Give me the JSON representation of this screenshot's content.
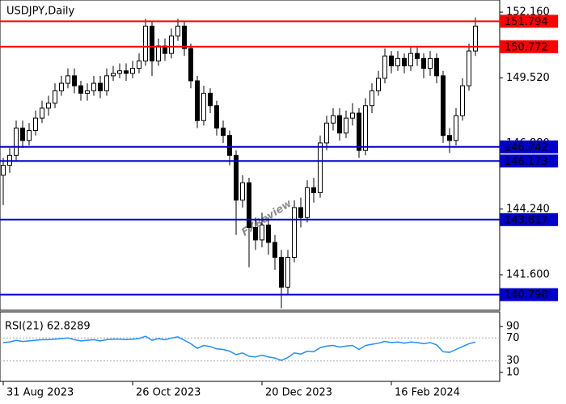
{
  "chart_data": [
    {
      "type": "candlestick",
      "title": "USDJPY,Daily",
      "watermark": "FXReview",
      "categories": [
        "31 Aug 2023",
        null,
        null,
        null,
        null,
        null,
        null,
        null,
        null,
        null,
        null,
        null,
        null,
        null,
        null,
        null,
        null,
        null,
        null,
        null,
        "26 Oct 2023",
        null,
        null,
        null,
        null,
        null,
        null,
        null,
        null,
        null,
        null,
        null,
        null,
        null,
        null,
        null,
        null,
        null,
        null,
        null,
        "20 Dec 2023",
        null,
        null,
        null,
        null,
        null,
        null,
        null,
        null,
        null,
        null,
        null,
        null,
        null,
        null,
        null,
        null,
        null,
        null,
        null,
        "16 Feb 2024",
        null,
        null,
        null,
        null,
        null,
        null,
        null,
        null,
        null,
        null,
        null,
        null,
        null
      ],
      "open": [
        145.6,
        146.0,
        146.4,
        147.5,
        147.0,
        147.4,
        147.9,
        148.3,
        148.5,
        149.0,
        149.3,
        149.6,
        149.2,
        148.9,
        149.0,
        149.3,
        149.0,
        149.6,
        149.7,
        149.8,
        149.7,
        149.9,
        150.2,
        151.6,
        150.2,
        150.8,
        150.5,
        151.2,
        151.6,
        150.7,
        149.4,
        147.8,
        148.9,
        148.4,
        147.5,
        147.2,
        146.4,
        144.6,
        145.3,
        143.5,
        143.0,
        143.6,
        142.9,
        142.3,
        141.1,
        142.3,
        144.3,
        143.9,
        145.1,
        144.9,
        146.9,
        147.7,
        148.0,
        147.3,
        147.9,
        148.1,
        146.6,
        148.4,
        149.0,
        149.5,
        150.4,
        150.0,
        150.3,
        150.0,
        150.5,
        150.3,
        149.9,
        150.3,
        149.6,
        147.2,
        147.0,
        148.0,
        149.2,
        150.6
      ],
      "high": [
        146.3,
        146.7,
        147.8,
        147.8,
        147.7,
        148.2,
        148.6,
        148.8,
        149.3,
        149.6,
        149.9,
        149.9,
        149.4,
        149.3,
        149.6,
        149.6,
        149.9,
        150.0,
        150.1,
        150.1,
        150.2,
        150.5,
        151.9,
        151.8,
        151.1,
        151.1,
        151.5,
        151.9,
        151.8,
        150.9,
        149.6,
        149.2,
        149.1,
        148.6,
        147.8,
        147.4,
        146.6,
        145.6,
        145.5,
        143.9,
        144.1,
        143.9,
        143.2,
        142.6,
        142.6,
        144.6,
        144.7,
        145.4,
        145.5,
        147.2,
        148.0,
        148.3,
        148.3,
        148.2,
        148.5,
        148.3,
        148.7,
        149.3,
        149.8,
        150.7,
        150.6,
        150.6,
        150.5,
        150.8,
        150.8,
        150.5,
        150.6,
        150.5,
        149.8,
        147.5,
        148.3,
        149.5,
        150.9,
        151.95
      ],
      "low": [
        144.4,
        145.7,
        146.2,
        146.7,
        146.8,
        147.2,
        147.7,
        148.0,
        148.3,
        148.8,
        149.1,
        148.9,
        148.6,
        148.6,
        148.8,
        148.7,
        148.8,
        149.4,
        149.5,
        149.4,
        149.5,
        149.7,
        150.0,
        149.6,
        150.0,
        150.2,
        150.3,
        151.0,
        150.4,
        149.1,
        147.5,
        147.6,
        148.1,
        147.2,
        146.9,
        146.0,
        143.2,
        144.3,
        141.9,
        142.6,
        142.7,
        142.4,
        141.8,
        140.25,
        140.8,
        142.1,
        143.5,
        143.7,
        144.5,
        144.7,
        146.6,
        147.4,
        147.0,
        147.1,
        147.6,
        146.3,
        146.4,
        148.1,
        148.8,
        149.3,
        149.7,
        149.8,
        149.7,
        149.8,
        150.0,
        149.5,
        149.6,
        149.3,
        146.9,
        146.5,
        146.8,
        147.8,
        149.0,
        150.4
      ],
      "close": [
        146.0,
        146.4,
        147.5,
        147.0,
        147.4,
        147.9,
        148.3,
        148.5,
        149.0,
        149.3,
        149.6,
        149.2,
        148.9,
        149.0,
        149.3,
        149.0,
        149.6,
        149.7,
        149.8,
        149.7,
        149.9,
        150.2,
        151.6,
        150.2,
        150.8,
        150.5,
        151.2,
        151.6,
        150.7,
        149.4,
        147.8,
        148.9,
        148.4,
        147.5,
        147.2,
        146.4,
        144.6,
        145.3,
        143.5,
        143.0,
        143.6,
        142.9,
        142.3,
        141.1,
        142.3,
        144.3,
        143.9,
        145.1,
        144.9,
        146.9,
        147.7,
        148.0,
        147.3,
        147.9,
        148.1,
        146.6,
        148.4,
        149.0,
        149.5,
        150.4,
        150.0,
        150.3,
        150.0,
        150.5,
        150.3,
        149.9,
        150.3,
        149.6,
        147.2,
        147.0,
        148.0,
        149.2,
        150.6,
        151.6
      ],
      "ylim": [
        140.17,
        152.65
      ],
      "yticks": [
        {
          "value": 152.16,
          "label": "152.160"
        },
        {
          "value": 149.52,
          "label": "149.520"
        },
        {
          "value": 146.88,
          "label": "146.880"
        },
        {
          "value": 144.24,
          "label": "144.240"
        },
        {
          "value": 141.6,
          "label": "141.600"
        }
      ],
      "levels": [
        {
          "value": 151.794,
          "color": "#ff0000"
        },
        {
          "value": 150.772,
          "color": "#ff0000"
        },
        {
          "value": 146.742,
          "color": "#0000c8"
        },
        {
          "value": 146.173,
          "color": "#0000c8"
        },
        {
          "value": 143.817,
          "color": "#0000c8"
        },
        {
          "value": 140.798,
          "color": "#0000c8"
        }
      ]
    },
    {
      "type": "line",
      "title": "RSI(21) 62.8289",
      "color": "#1e90ff",
      "values": [
        62,
        63,
        66,
        64,
        65,
        66,
        67,
        67,
        68,
        69,
        70,
        67,
        65,
        66,
        67,
        65,
        67,
        68,
        68,
        67,
        68,
        69,
        73,
        66,
        69,
        67,
        70,
        72,
        66,
        60,
        52,
        57,
        55,
        51,
        50,
        47,
        41,
        44,
        38,
        37,
        40,
        37,
        35,
        31,
        36,
        44,
        42,
        47,
        46,
        53,
        56,
        57,
        54,
        56,
        57,
        50,
        57,
        59,
        61,
        64,
        62,
        63,
        61,
        63,
        62,
        60,
        62,
        58,
        46,
        45,
        50,
        55,
        60,
        62.8289
      ],
      "ylim": [
        0,
        100
      ],
      "yticks": [
        90,
        70,
        30,
        10
      ]
    }
  ]
}
